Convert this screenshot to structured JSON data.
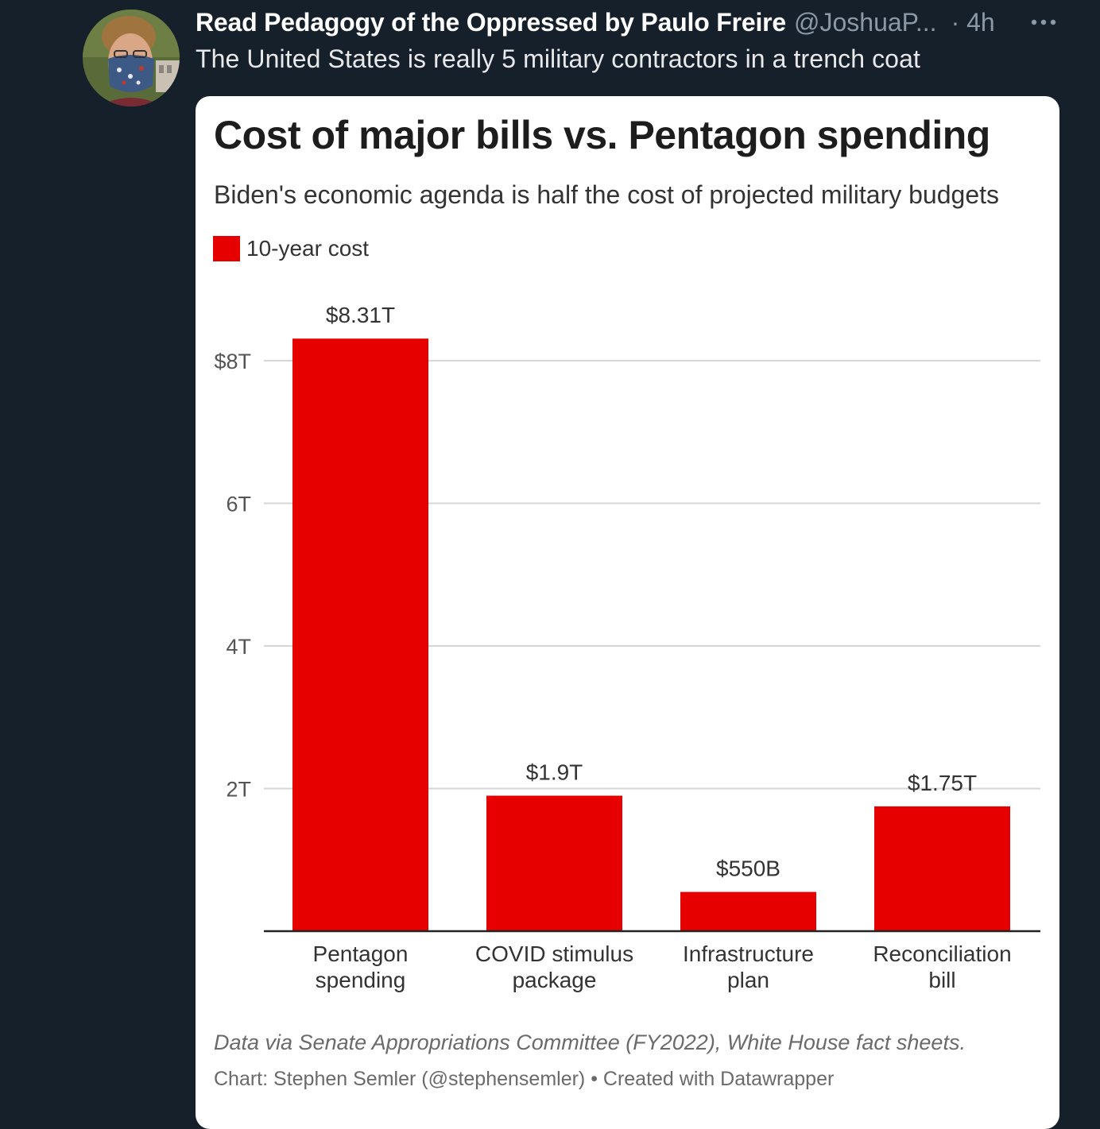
{
  "tweet": {
    "display_name": "Read Pedagogy of the Oppressed by Paulo Freire",
    "handle": "@JoshuaP...",
    "time": "· 4h",
    "text": "The United States is really 5 military contractors in a trench coat",
    "more_icon": "more-horizontal-icon"
  },
  "chart_data": {
    "type": "bar",
    "title": "Cost of major bills vs. Pentagon spending",
    "subtitle": "Biden's economic agenda is half the cost of projected military budgets",
    "legend": [
      {
        "name": "10-year cost",
        "color": "#e60000"
      }
    ],
    "categories": [
      [
        "Pentagon",
        "spending"
      ],
      [
        "COVID stimulus",
        "package"
      ],
      [
        "Infrastructure",
        "plan"
      ],
      [
        "Reconciliation",
        "bill"
      ]
    ],
    "values": [
      8.31,
      1.9,
      0.55,
      1.75
    ],
    "value_labels": [
      "$8.31T",
      "$1.9T",
      "$550B",
      "$1.75T"
    ],
    "yticks": [
      {
        "value": 2,
        "label": "2T"
      },
      {
        "value": 4,
        "label": "4T"
      },
      {
        "value": 6,
        "label": "6T"
      },
      {
        "value": 8,
        "label": "$8T"
      }
    ],
    "ylim": [
      0,
      8.31
    ],
    "grid": true,
    "legend_position": "top-left",
    "bar_color": "#e60000",
    "notes": "Data via Senate Appropriations Committee (FY2022), White House fact sheets.",
    "byline": "Chart: Stephen Semler (@stephensemler) • Created with Datawrapper"
  }
}
